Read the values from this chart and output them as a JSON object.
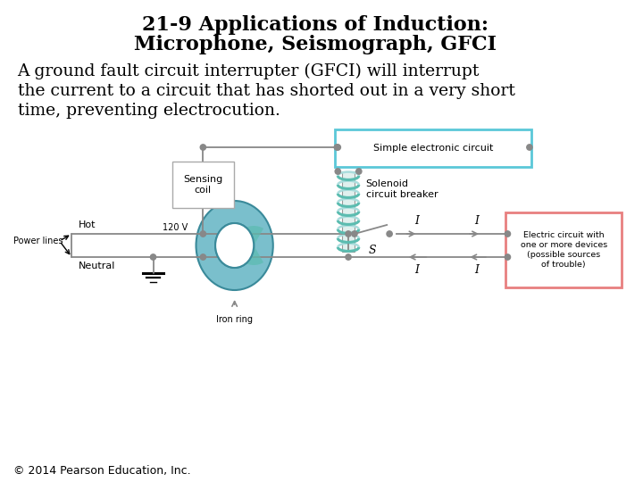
{
  "title_line1": "21-9 Applications of Induction:",
  "title_line2": "Microphone, Seismograph, GFCI",
  "body_line1": "A ground fault circuit interrupter (GFCI) will interrupt",
  "body_line2": "the current to a circuit that has shorted out in a very short",
  "body_line3": "time, preventing electrocution.",
  "copyright": "© 2014 Pearson Education, Inc.",
  "bg_color": "#ffffff",
  "title_color": "#000000",
  "body_color": "#000000",
  "title_fontsize": 16,
  "body_fontsize": 13.5,
  "copyright_fontsize": 9,
  "cyan_box_color": "#5bc8d8",
  "red_box_color": "#e88080",
  "iron_ring_outer_color": "#7abfcc",
  "iron_ring_inner_color": "#a8d8d8",
  "coil_color": "#5bbcb0",
  "wire_color": "#888888",
  "label_fontsize": 8.0,
  "small_label_fontsize": 7.0
}
